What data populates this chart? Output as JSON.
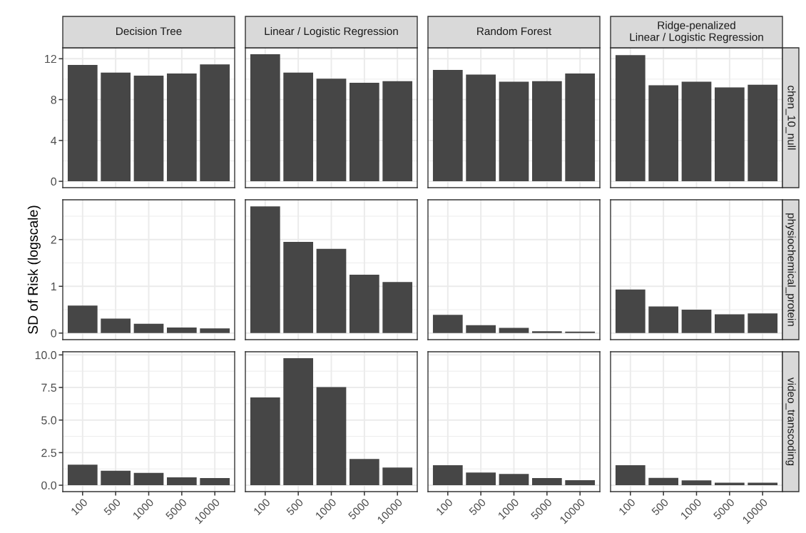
{
  "chart_data": [
    {
      "type": "bar",
      "title": "Decision Tree",
      "categories": [
        "100",
        "500",
        "1000",
        "5000",
        "10000"
      ],
      "values": [
        11.4,
        10.65,
        10.35,
        10.55,
        11.45
      ],
      "color": "#464646",
      "ylim": [
        -0.62,
        13.07
      ],
      "yticks": [
        0,
        4,
        8,
        12
      ],
      "grid": true,
      "tick_labels": "y"
    },
    {
      "type": "bar",
      "title": "Linear / Logistic Regression",
      "categories": [
        "100",
        "500",
        "1000",
        "5000",
        "10000"
      ],
      "values": [
        12.45,
        10.65,
        10.05,
        9.65,
        9.8
      ],
      "color": "#464646",
      "ylim": [
        -0.62,
        13.07
      ],
      "yticks": [
        0,
        4,
        8,
        12
      ],
      "grid": true,
      "tick_labels": false
    },
    {
      "type": "bar",
      "title": "Random Forest",
      "categories": [
        "100",
        "500",
        "1000",
        "5000",
        "10000"
      ],
      "values": [
        10.9,
        10.45,
        9.75,
        9.8,
        10.55
      ],
      "color": "#464646",
      "ylim": [
        -0.62,
        13.07
      ],
      "yticks": [
        0,
        4,
        8,
        12
      ],
      "grid": true,
      "tick_labels": false
    },
    {
      "type": "bar",
      "title": "Ridge-penalized\nLinear / Logistic Regression",
      "y2label": "chen_10_null",
      "categories": [
        "100",
        "500",
        "1000",
        "5000",
        "10000"
      ],
      "values": [
        12.35,
        9.4,
        9.75,
        9.2,
        9.45
      ],
      "color": "#464646",
      "ylim": [
        -0.62,
        13.07
      ],
      "yticks": [
        0,
        4,
        8,
        12
      ],
      "grid": true,
      "tick_labels": false
    },
    {
      "type": "bar",
      "ylabel": "SD of Risk (logscale)",
      "categories": [
        "100",
        "500",
        "1000",
        "5000",
        "10000"
      ],
      "values": [
        0.59,
        0.31,
        0.2,
        0.12,
        0.1
      ],
      "color": "#464646",
      "ylim": [
        -0.14,
        2.85
      ],
      "yticks": [
        0,
        1,
        2
      ],
      "grid": true,
      "tick_labels": "y"
    },
    {
      "type": "bar",
      "categories": [
        "100",
        "500",
        "1000",
        "5000",
        "10000"
      ],
      "values": [
        2.71,
        1.95,
        1.8,
        1.25,
        1.09
      ],
      "color": "#464646",
      "ylim": [
        -0.14,
        2.85
      ],
      "yticks": [
        0,
        1,
        2
      ],
      "grid": true,
      "tick_labels": false
    },
    {
      "type": "bar",
      "categories": [
        "100",
        "500",
        "1000",
        "5000",
        "10000"
      ],
      "values": [
        0.39,
        0.17,
        0.11,
        0.04,
        0.03
      ],
      "color": "#464646",
      "ylim": [
        -0.14,
        2.85
      ],
      "yticks": [
        0,
        1,
        2
      ],
      "grid": true,
      "tick_labels": false
    },
    {
      "type": "bar",
      "y2label": "physiochemical_protein",
      "categories": [
        "100",
        "500",
        "1000",
        "5000",
        "10000"
      ],
      "values": [
        0.93,
        0.57,
        0.5,
        0.4,
        0.42
      ],
      "color": "#464646",
      "ylim": [
        -0.14,
        2.85
      ],
      "yticks": [
        0,
        1,
        2
      ],
      "grid": true,
      "tick_labels": false
    },
    {
      "type": "bar",
      "categories": [
        "100",
        "500",
        "1000",
        "5000",
        "10000"
      ],
      "values": [
        1.58,
        1.11,
        0.95,
        0.6,
        0.55
      ],
      "color": "#464646",
      "ylim": [
        -0.49,
        10.24
      ],
      "yticks": [
        {
          "value": 0,
          "label": "0.0"
        },
        {
          "value": 2.5,
          "label": "2.5"
        },
        {
          "value": 5,
          "label": "5.0"
        },
        {
          "value": 7.5,
          "label": "7.5"
        },
        {
          "value": 10,
          "label": "10.0"
        }
      ],
      "grid": true
    },
    {
      "type": "bar",
      "categories": [
        "100",
        "500",
        "1000",
        "5000",
        "10000"
      ],
      "values": [
        6.73,
        9.75,
        7.53,
        2.02,
        1.36
      ],
      "color": "#464646",
      "ylim": [
        -0.49,
        10.24
      ],
      "yticks": [
        0,
        2.5,
        5,
        7.5,
        10
      ],
      "grid": true,
      "tick_labels": "x"
    },
    {
      "type": "bar",
      "categories": [
        "100",
        "500",
        "1000",
        "5000",
        "10000"
      ],
      "values": [
        1.53,
        0.98,
        0.86,
        0.55,
        0.39
      ],
      "color": "#464646",
      "ylim": [
        -0.49,
        10.24
      ],
      "yticks": [
        0,
        2.5,
        5,
        7.5,
        10
      ],
      "grid": true,
      "tick_labels": "x"
    },
    {
      "type": "bar",
      "y2label": "video_transcoding",
      "categories": [
        "100",
        "500",
        "1000",
        "5000",
        "10000"
      ],
      "values": [
        1.53,
        0.57,
        0.37,
        0.2,
        0.2
      ],
      "color": "#464646",
      "ylim": [
        -0.49,
        10.24
      ],
      "yticks": [
        0,
        2.5,
        5,
        7.5,
        10
      ],
      "grid": true,
      "tick_labels": "x"
    }
  ]
}
